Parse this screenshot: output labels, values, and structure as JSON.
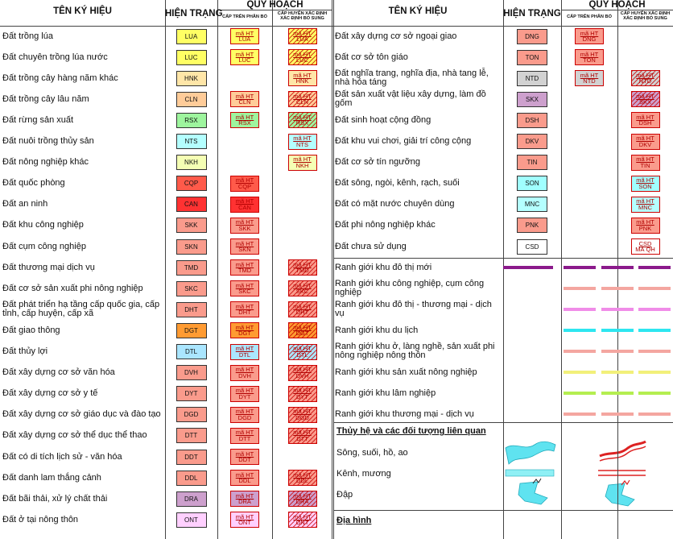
{
  "header": {
    "name_col": "TÊN KÝ HIỆU",
    "current_col": "HIỆN TRẠNG",
    "plan_col": "QUY HOẠCH",
    "upper_col": "CẤP TRÊN PHÂN BỔ",
    "district_col": [
      "CẤP HUYỆN XÁC ĐỊNH",
      "XÁC ĐỊNH BỔ SUNG"
    ]
  },
  "current_code_label": "mã HT",
  "planned_code_label": "MÃ QH",
  "left_rows": [
    {
      "name": "Đất trồng lúa",
      "code": "LUA",
      "color": "#ffff64",
      "upper": true,
      "district": "hatched"
    },
    {
      "name": "Đất chuyên trồng lúa nước",
      "code": "LUC",
      "color": "#ffff64",
      "upper": true,
      "district": "hatched"
    },
    {
      "name": "Đất trồng cây hàng năm khác",
      "code": "HNK",
      "color": "#ffe6a8",
      "upper": false,
      "district": "plain"
    },
    {
      "name": "Đất trồng cây lâu năm",
      "code": "CLN",
      "color": "#ffcc99",
      "upper": true,
      "district": "hatched"
    },
    {
      "name": "Đất rừng sản xuất",
      "code": "RSX",
      "color": "#9ef59e",
      "upper": true,
      "district": "hatched"
    },
    {
      "name": "Đất nuôi trồng thủy sản",
      "code": "NTS",
      "color": "#b4ffff",
      "upper": false,
      "district": "plain"
    },
    {
      "name": "Đất nông nghiệp khác",
      "code": "NKH",
      "color": "#f5ffb4",
      "upper": false,
      "district": "plain"
    },
    {
      "name": "Đất quốc phòng",
      "code": "CQP",
      "color": "#ff5a4a",
      "upper": true,
      "district": null
    },
    {
      "name": "Đất an ninh",
      "code": "CAN",
      "color": "#ff3232",
      "upper": true,
      "district": null
    },
    {
      "name": "Đất khu công nghiệp",
      "code": "SKK",
      "color": "#fa9b8c",
      "upper": true,
      "district": null
    },
    {
      "name": "Đất cụm công nghiệp",
      "code": "SKN",
      "color": "#fa9b8c",
      "upper": true,
      "district": null
    },
    {
      "name": "Đất thương mại dịch vụ",
      "code": "TMD",
      "color": "#fa9b8c",
      "upper": true,
      "district": "hatched"
    },
    {
      "name": "Đất cơ sở sản xuất phi nông nghiệp",
      "code": "SKC",
      "color": "#fa9b8c",
      "upper": true,
      "district": "hatched"
    },
    {
      "name": "Đất phát triển hạ tầng cấp quốc gia, cấp tỉnh, cấp huyện, cấp xã",
      "code": "DHT",
      "color": "#fa9b8c",
      "upper": true,
      "district": "hatched"
    },
    {
      "name": "Đất giao thông",
      "code": "DGT",
      "color": "#ff9b32",
      "upper": true,
      "district": "hatched"
    },
    {
      "name": "Đất thủy lợi",
      "code": "DTL",
      "color": "#aae6ff",
      "upper": true,
      "district": "hatched"
    },
    {
      "name": "Đất xây dựng cơ sở văn hóa",
      "code": "DVH",
      "color": "#fa9b8c",
      "upper": true,
      "district": "hatched"
    },
    {
      "name": "Đất xây dựng cơ sở y tế",
      "code": "DYT",
      "color": "#fa9b8c",
      "upper": true,
      "district": "hatched"
    },
    {
      "name": "Đất xây dựng cơ sở giáo dục và đào tạo",
      "code": "DGD",
      "color": "#fa9b8c",
      "upper": true,
      "district": "hatched"
    },
    {
      "name": "Đất xây dựng cơ sở thể dục thể thao",
      "code": "DTT",
      "color": "#fa9b8c",
      "upper": true,
      "district": "hatched"
    },
    {
      "name": "Đất có di tích lịch sử - văn hóa",
      "code": "DDT",
      "color": "#fa9b8c",
      "upper": true,
      "district": null
    },
    {
      "name": "Đất danh lam thắng cảnh",
      "code": "DDL",
      "color": "#fa9b8c",
      "upper": true,
      "district": "hatched"
    },
    {
      "name": "Đất bãi thải, xử lý chất thải",
      "code": "DRA",
      "color": "#cda0cd",
      "upper": true,
      "district": "hatched"
    },
    {
      "name": "Đất ở tại nông thôn",
      "code": "ONT",
      "color": "#ffd0ff",
      "upper": true,
      "district": "hatched"
    }
  ],
  "right_rows": [
    {
      "name": "Đất xây dựng cơ sở ngoại giao",
      "code": "DNG",
      "color": "#fa9b8c",
      "upper": true,
      "district": null
    },
    {
      "name": "Đất cơ sở tôn giáo",
      "code": "TON",
      "color": "#fa9b8c",
      "upper": true,
      "district": null
    },
    {
      "name": "Đất nghĩa trang, nghĩa địa, nhà tang lễ, nhà hỏa táng",
      "code": "NTD",
      "color": "#d2d2d2",
      "upper": true,
      "district": "hatched"
    },
    {
      "name": "Đất sản xuất vật liệu xây dựng, làm đồ gốm",
      "code": "SKX",
      "color": "#cda0cd",
      "upper": false,
      "district": "hatched"
    },
    {
      "name": "Đất sinh hoạt cộng đồng",
      "code": "DSH",
      "color": "#fa9b8c",
      "upper": false,
      "district": "plain"
    },
    {
      "name": "Đất khu vui chơi, giải trí công cộng",
      "code": "DKV",
      "color": "#fa9b8c",
      "upper": false,
      "district": "plain"
    },
    {
      "name": "Đất cơ sở tín ngưỡng",
      "code": "TIN",
      "color": "#fa9b8c",
      "upper": false,
      "district": "plain"
    },
    {
      "name": "Đất sông, ngòi, kênh, rạch, suối",
      "code": "SON",
      "color": "#a0ffff",
      "upper": false,
      "district": "plain"
    },
    {
      "name": "Đất có mặt nước chuyên dùng",
      "code": "MNC",
      "color": "#b4ffff",
      "upper": false,
      "district": "plain"
    },
    {
      "name": "Đất phi nông nghiệp khác",
      "code": "PNK",
      "color": "#fa9b8c",
      "upper": false,
      "district": "plain"
    },
    {
      "name": "Đất chưa sử dụng",
      "code": "CSD",
      "color": "#ffffff",
      "upper": false,
      "district": "planned"
    }
  ],
  "boundaries": [
    {
      "name": "Ranh giới khu đô thị mới",
      "color": "#8b1a8b",
      "current": true
    },
    {
      "name": "Ranh giới khu công nghiệp, cụm công nghiệp",
      "color": "#f4a6a0",
      "current": false
    },
    {
      "name": "Ranh giới khu đô thị - thương mại - dịch vụ",
      "color": "#f08ce8",
      "current": false
    },
    {
      "name": "Ranh giới khu du lịch",
      "color": "#2ee6f0",
      "current": false
    },
    {
      "name": "Ranh giới khu ở, làng nghề, sản xuất phi nông nghiệp nông thôn",
      "color": "#f4a6a0",
      "current": false
    },
    {
      "name": "Ranh giới khu sản xuất nông nghiệp",
      "color": "#f2f07a",
      "current": false
    },
    {
      "name": "Ranh giới khu lâm nghiệp",
      "color": "#b4ee50",
      "current": false
    },
    {
      "name": "Ranh giới khu thương mại - dịch vụ",
      "color": "#f4a6a0",
      "current": false
    }
  ],
  "hydrology": {
    "title": "Thủy hệ và các đối tượng liên quan",
    "items": [
      "Sông, suối, hồ, ao",
      "Kênh, mương",
      "Đập"
    ]
  },
  "terrain": "Địa hình"
}
